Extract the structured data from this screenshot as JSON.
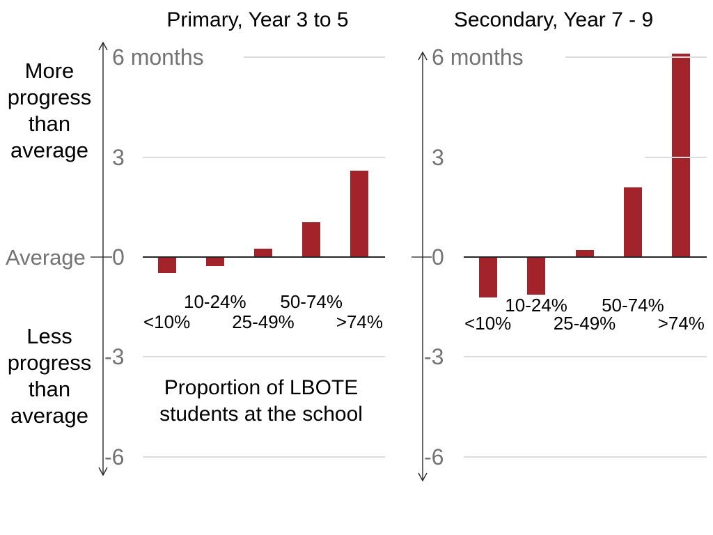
{
  "chart_data": [
    {
      "type": "bar",
      "title": "Primary, Year 3 to 5",
      "categories": [
        "<10%",
        "10-24%",
        "25-49%",
        "50-74%",
        ">74%"
      ],
      "values": [
        -0.45,
        -0.25,
        0.25,
        1.05,
        2.6
      ],
      "xlabel": "Proportion of LBOTE students at the school",
      "ylabel": "months",
      "ylim": [
        -6,
        6
      ],
      "yticks": [
        6,
        3,
        0,
        -3,
        -6
      ],
      "grid": true,
      "legend": "none",
      "bar_color": "#a2232a"
    },
    {
      "type": "bar",
      "title": "Secondary, Year 7 - 9",
      "categories": [
        "<10%",
        "10-24%",
        "25-49%",
        "50-74%",
        ">74%"
      ],
      "values": [
        -1.2,
        -1.1,
        0.2,
        2.1,
        6.1
      ],
      "xlabel": "Proportion of LBOTE students at the school",
      "ylabel": "months",
      "ylim": [
        -6,
        6
      ],
      "yticks": [
        6,
        3,
        0,
        -3,
        -6
      ],
      "grid": true,
      "legend": "none",
      "bar_color": "#a2232a"
    }
  ],
  "ui": {
    "y_tick_labels": [
      {
        "value": 6,
        "text": "6 months"
      },
      {
        "value": 3,
        "text": "3"
      },
      {
        "value": 0,
        "text": "0"
      },
      {
        "value": -3,
        "text": "-3"
      },
      {
        "value": -6,
        "text": "-6"
      }
    ],
    "side_labels": {
      "more": "More progress than average",
      "average": "Average",
      "less": "Less progress than average"
    },
    "caption": "Proportion of LBOTE students at the school",
    "colors": {
      "bar": "#a2232a",
      "gray_text": "#737373",
      "black_text": "#000000",
      "gridline": "#dcdcdc",
      "axis": "#262626",
      "background": "#ffffff"
    }
  }
}
